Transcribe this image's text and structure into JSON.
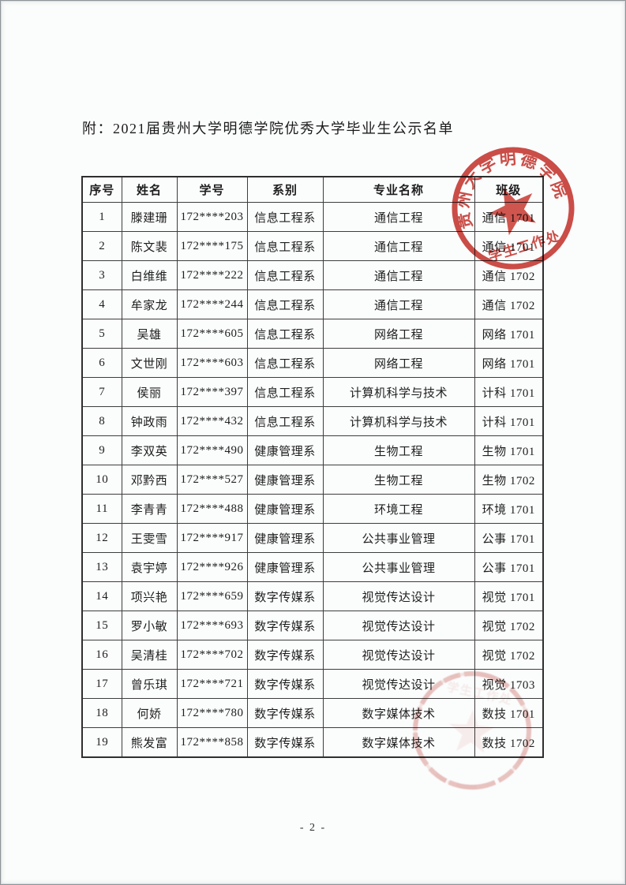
{
  "document": {
    "title": "附：2021届贵州大学明德学院优秀大学毕业生公示名单",
    "page_number": "- 2 -"
  },
  "table": {
    "headers": [
      "序号",
      "姓名",
      "学号",
      "系别",
      "专业名称",
      "班级"
    ],
    "rows": [
      [
        "1",
        "滕建珊",
        "172****203",
        "信息工程系",
        "通信工程",
        "通信 1701"
      ],
      [
        "2",
        "陈文裴",
        "172****175",
        "信息工程系",
        "通信工程",
        "通信 1701"
      ],
      [
        "3",
        "白维维",
        "172****222",
        "信息工程系",
        "通信工程",
        "通信 1702"
      ],
      [
        "4",
        "牟家龙",
        "172****244",
        "信息工程系",
        "通信工程",
        "通信 1702"
      ],
      [
        "5",
        "吴雄",
        "172****605",
        "信息工程系",
        "网络工程",
        "网络 1701"
      ],
      [
        "6",
        "文世刚",
        "172****603",
        "信息工程系",
        "网络工程",
        "网络 1701"
      ],
      [
        "7",
        "侯丽",
        "172****397",
        "信息工程系",
        "计算机科学与技术",
        "计科 1701"
      ],
      [
        "8",
        "钟政雨",
        "172****432",
        "信息工程系",
        "计算机科学与技术",
        "计科 1701"
      ],
      [
        "9",
        "李双英",
        "172****490",
        "健康管理系",
        "生物工程",
        "生物 1701"
      ],
      [
        "10",
        "邓黔西",
        "172****527",
        "健康管理系",
        "生物工程",
        "生物 1702"
      ],
      [
        "11",
        "李青青",
        "172****488",
        "健康管理系",
        "环境工程",
        "环境 1701"
      ],
      [
        "12",
        "王雯雪",
        "172****917",
        "健康管理系",
        "公共事业管理",
        "公事 1701"
      ],
      [
        "13",
        "袁宇婷",
        "172****926",
        "健康管理系",
        "公共事业管理",
        "公事 1701"
      ],
      [
        "14",
        "项兴艳",
        "172****659",
        "数字传媒系",
        "视觉传达设计",
        "视觉 1701"
      ],
      [
        "15",
        "罗小敏",
        "172****693",
        "数字传媒系",
        "视觉传达设计",
        "视觉 1702"
      ],
      [
        "16",
        "吴清桂",
        "172****702",
        "数字传媒系",
        "视觉传达设计",
        "视觉 1702"
      ],
      [
        "17",
        "曾乐琪",
        "172****721",
        "数字传媒系",
        "视觉传达设计",
        "视觉 1703"
      ],
      [
        "18",
        "何娇",
        "172****780",
        "数字传媒系",
        "数字媒体技术",
        "数技 1701"
      ],
      [
        "19",
        "熊发富",
        "172****858",
        "数字传媒系",
        "数字媒体技术",
        "数技 1702"
      ]
    ]
  },
  "stamps": {
    "top_seal": {
      "ring_text": "贵州大学明德学院",
      "center_text": "学生工作处",
      "color": "#c8352e"
    },
    "bottom_seal": {
      "color": "#d27a73"
    }
  }
}
